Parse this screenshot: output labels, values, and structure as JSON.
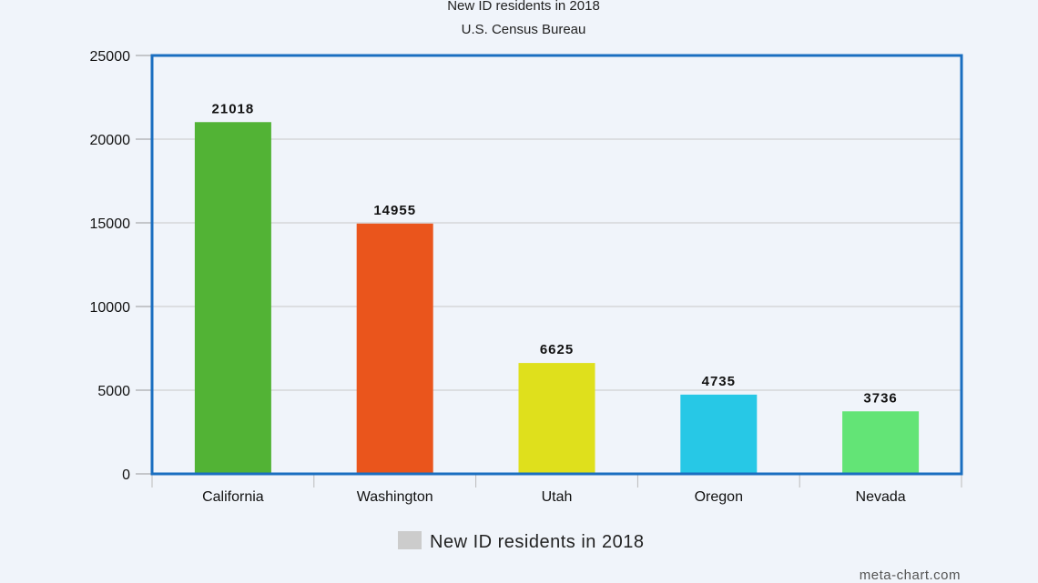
{
  "chart_data": {
    "type": "bar",
    "title": "New ID residents in 2018",
    "subtitle": "U.S. Census Bureau",
    "categories": [
      "California",
      "Washington",
      "Utah",
      "Oregon",
      "Nevada"
    ],
    "values": [
      21018,
      14955,
      6625,
      4735,
      3736
    ],
    "colors": [
      "#52b335",
      "#ea551c",
      "#dfe01c",
      "#27c8e6",
      "#63e476"
    ],
    "ylim": [
      0,
      25000
    ],
    "yticks": [
      0,
      5000,
      10000,
      15000,
      20000,
      25000
    ],
    "grid": true,
    "legend": {
      "label": "New ID residents in 2018",
      "placement": "bottom-center",
      "swatch_color": "#cccccc"
    },
    "data_labels": true
  },
  "watermark": "meta-chart.com",
  "frame_color": "#1a6ec0"
}
